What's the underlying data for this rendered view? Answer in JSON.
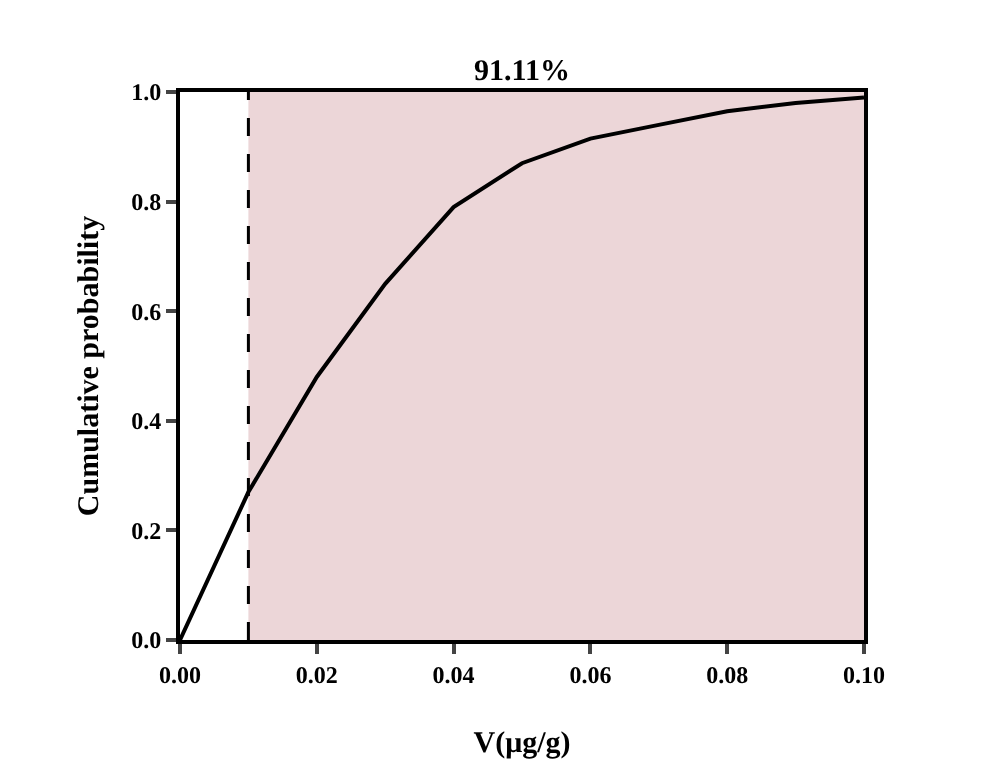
{
  "chart_data": {
    "type": "line",
    "title": "91.11%",
    "xlabel": "V(μg/g)",
    "ylabel": "Cumulative probability",
    "x": [
      0,
      0.01,
      0.02,
      0.03,
      0.04,
      0.05,
      0.06,
      0.07,
      0.08,
      0.09,
      0.1
    ],
    "series": [
      {
        "color": "#000000",
        "values": [
          0,
          0.27,
          0.48,
          0.65,
          0.79,
          0.87,
          0.915,
          0.94,
          0.965,
          0.98,
          0.99
        ]
      }
    ],
    "xlim": [
      0,
      0.1
    ],
    "xticks": [
      {
        "value": 0,
        "label": "0.00"
      },
      {
        "value": 0.02,
        "label": "0.02"
      },
      {
        "value": 0.04,
        "label": "0.04"
      },
      {
        "value": 0.06,
        "label": "0.06"
      },
      {
        "value": 0.08,
        "label": "0.08"
      },
      {
        "value": 0.1,
        "label": "0.10"
      }
    ],
    "ylim": [
      0,
      1
    ],
    "yticks": [
      {
        "value": 0,
        "label": "0.0"
      },
      {
        "value": 0.2,
        "label": "0.2"
      },
      {
        "value": 0.4,
        "label": "0.4"
      },
      {
        "value": 0.6,
        "label": "0.6"
      },
      {
        "value": 0.8,
        "label": "0.8"
      },
      {
        "value": 1,
        "label": "1.0"
      }
    ],
    "ref_lines": [
      {
        "axis": "x",
        "value": 0.01,
        "line_style": "dashed",
        "color": "#000000"
      }
    ],
    "bands": [
      {
        "axis": "x",
        "from": 0.01,
        "to": 0.1,
        "color": "#ecd6d8"
      }
    ],
    "grid": false,
    "marker": "none",
    "line_style": "solid"
  }
}
